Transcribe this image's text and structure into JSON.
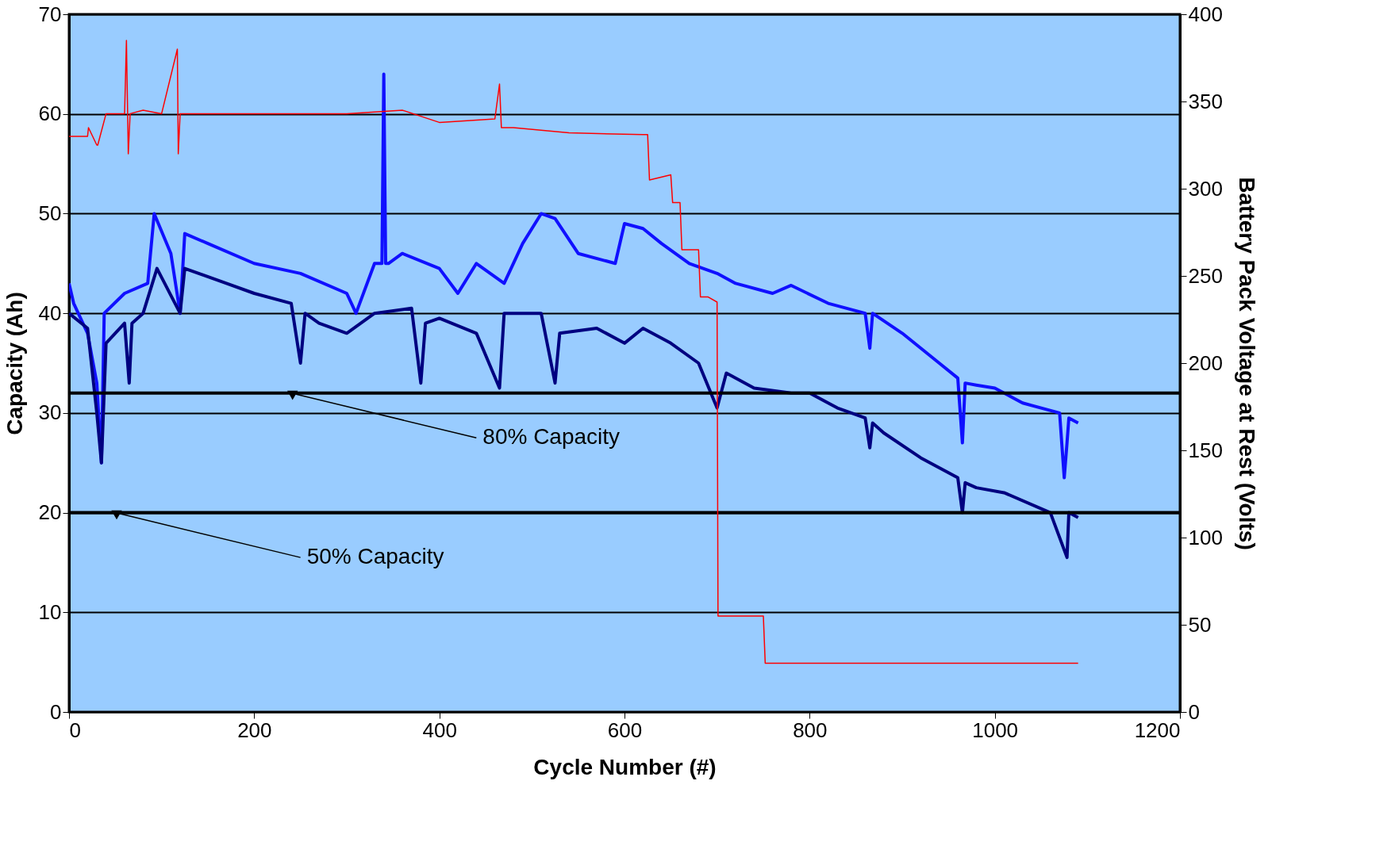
{
  "chart_data": {
    "type": "line",
    "xlabel": "Cycle Number (#)",
    "ylabel": "Capacity (Ah)",
    "y2label": "Battery Pack Voltage at Rest (Volts)",
    "xlim": [
      0,
      1200
    ],
    "xticks": [
      0,
      200,
      400,
      600,
      800,
      1000,
      1200
    ],
    "ylim": [
      0,
      70
    ],
    "yticks": [
      0,
      10,
      20,
      30,
      40,
      50,
      60,
      70
    ],
    "y2lim": [
      0,
      400
    ],
    "y2ticks": [
      0,
      50,
      100,
      150,
      200,
      250,
      300,
      350,
      400
    ],
    "grid": "y",
    "line_style": "solid",
    "marker": "none",
    "series": [
      {
        "color": "#1010ff",
        "x": [
          0,
          5,
          20,
          30,
          35,
          38,
          60,
          85,
          92,
          110,
          120,
          125,
          150,
          200,
          250,
          300,
          310,
          330,
          338,
          340,
          342,
          345,
          360,
          400,
          420,
          440,
          470,
          490,
          510,
          525,
          550,
          590,
          600,
          620,
          640,
          670,
          700,
          720,
          760,
          780,
          820,
          860,
          865,
          868,
          900,
          940,
          960,
          965,
          968,
          980,
          1000,
          1030,
          1070,
          1075,
          1078,
          1080,
          1090
        ],
        "values": [
          43,
          41,
          38,
          33,
          25,
          40,
          42,
          43,
          50,
          46,
          40,
          48,
          47,
          45,
          44,
          42,
          40,
          45,
          45,
          64,
          45,
          45,
          46,
          44.5,
          42,
          45,
          43,
          47,
          50,
          49.5,
          46,
          45,
          49,
          48.5,
          47,
          45,
          44,
          43,
          42,
          42.8,
          41,
          40,
          36.5,
          40,
          38,
          35,
          33.5,
          27,
          33,
          32.8,
          32.5,
          31,
          30,
          23.5,
          27,
          29.5,
          29
        ]
      },
      {
        "color": "#000080",
        "x": [
          0,
          20,
          30,
          35,
          40,
          60,
          65,
          68,
          80,
          95,
          120,
          125,
          170,
          200,
          240,
          250,
          255,
          270,
          300,
          330,
          370,
          380,
          385,
          400,
          440,
          465,
          470,
          510,
          525,
          530,
          570,
          600,
          620,
          650,
          680,
          700,
          710,
          740,
          780,
          800,
          830,
          860,
          865,
          868,
          880,
          920,
          960,
          965,
          968,
          980,
          1010,
          1060,
          1078,
          1080,
          1090
        ],
        "values": [
          40,
          38.5,
          30,
          25,
          37,
          39,
          33,
          39,
          40,
          44.5,
          40,
          44.5,
          43,
          42,
          41,
          35,
          40,
          39,
          38,
          40,
          40.5,
          33,
          39,
          39.5,
          38,
          32.5,
          40,
          40,
          33,
          38,
          38.5,
          37,
          38.5,
          37,
          35,
          30.5,
          34,
          32.5,
          32,
          32,
          30.5,
          29.5,
          26.5,
          29,
          28,
          25.5,
          23.5,
          20,
          23,
          22.5,
          22,
          20,
          15.5,
          20,
          19.5
        ]
      },
      {
        "color": "#ff0000",
        "axis": "y2",
        "x": [
          0,
          20,
          21,
          30,
          31,
          40,
          41,
          60,
          62,
          64,
          66,
          80,
          100,
          117,
          118,
          120,
          130,
          300,
          360,
          400,
          460,
          465,
          467,
          480,
          540,
          620,
          625,
          627,
          650,
          652,
          660,
          662,
          680,
          682,
          690,
          700,
          701,
          750,
          752,
          1090
        ],
        "values": [
          330,
          330,
          335,
          325,
          325,
          343,
          343,
          343,
          385,
          320,
          343,
          345,
          343,
          380,
          320,
          343,
          343,
          343,
          345,
          338,
          340,
          360,
          335,
          335,
          332,
          331,
          331,
          305,
          308,
          292,
          292,
          265,
          265,
          238,
          238,
          235,
          55,
          55,
          28,
          28
        ]
      }
    ],
    "ref_lines": [
      {
        "axis": "y",
        "value": 32,
        "color": "#000000"
      },
      {
        "axis": "y",
        "value": 20,
        "color": "#000000"
      }
    ],
    "annotations": [
      {
        "text": "80% Capacity",
        "x": 240,
        "y": 32
      },
      {
        "text": "50% Capacity",
        "x": 50,
        "y": 20
      }
    ]
  }
}
